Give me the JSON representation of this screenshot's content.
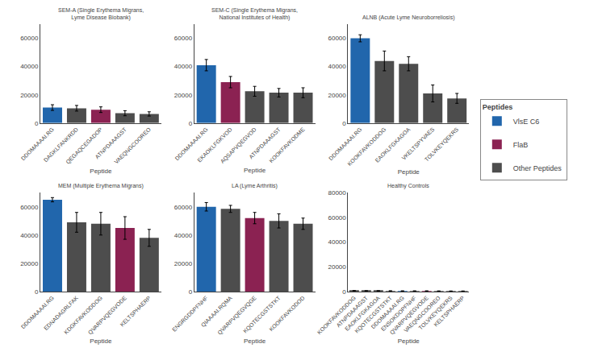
{
  "chart_data": [
    {
      "type": "bar",
      "title": "SEM-A (Single Erythema Migrans,\nLyme Disease Biobank)",
      "xlabel": "Peptide",
      "legend_title": "Peptides",
      "categories": [
        "DDOMAAAAI.RG",
        "DAGKLFANKRDD",
        "QEGAQCEGADOP",
        "ATNPDAAAGST",
        "VAEQNGCOOREO"
      ],
      "series": [
        {
          "name": "VlsE C6",
          "color": "#2166ac",
          "values": [
            11000,
            null,
            null,
            null,
            null
          ],
          "errors": [
            2000,
            null,
            null,
            null,
            null
          ]
        },
        {
          "name": "FlaB",
          "color": "#8b2252",
          "values": [
            null,
            null,
            9500,
            null,
            null
          ],
          "errors": [
            null,
            null,
            2000,
            null,
            null
          ]
        },
        {
          "name": "Other Peptides",
          "color": "#4d4d4d",
          "values": [
            null,
            10500,
            null,
            7000,
            6500
          ],
          "errors": [
            null,
            2000,
            null,
            1800,
            1500
          ]
        }
      ],
      "ylim": [
        0,
        70000
      ],
      "yticks": [
        0,
        20000,
        40000,
        60000
      ],
      "grid": false
    },
    {
      "type": "bar",
      "title": "SEM-C (Single Erythema Migrans,\nNational Institutes of Health)",
      "xlabel": "Peptide",
      "categories": [
        "DDOMAAAAI.RG",
        "EKAOKLFGKVOD",
        "AQSAPVQEGVOD",
        "ATNPDAAAGST",
        "KOOKFAVKODME"
      ],
      "series": [
        {
          "name": "VlsE C6",
          "color": "#2166ac",
          "values": [
            41000,
            null,
            null,
            null,
            null
          ],
          "errors": [
            4000,
            null,
            null,
            null,
            null
          ]
        },
        {
          "name": "FlaB",
          "color": "#8b2252",
          "values": [
            null,
            29000,
            null,
            null,
            null
          ],
          "errors": [
            null,
            4000,
            null,
            null,
            null
          ]
        },
        {
          "name": "Other Peptides",
          "color": "#4d4d4d",
          "values": [
            null,
            null,
            22500,
            21500,
            21500
          ],
          "errors": [
            null,
            null,
            3500,
            3000,
            3500
          ]
        }
      ],
      "ylim": [
        0,
        70000
      ],
      "yticks": [
        0,
        20000,
        40000,
        60000
      ],
      "grid": false
    },
    {
      "type": "bar",
      "title": "ALNB (Acute Lyme Neuroborreliosis)",
      "xlabel": "Peptide",
      "categories": [
        "DDOMAAAAI.RG",
        "KOOKFAVKODDOG",
        "EAOKLFGKAGOA",
        "VKELTSPYVAES",
        "TOLVKEYQEKRS"
      ],
      "series": [
        {
          "name": "VlsE C6",
          "color": "#2166ac",
          "values": [
            60000,
            null,
            null,
            null,
            null
          ],
          "errors": [
            2500,
            null,
            null,
            null,
            null
          ]
        },
        {
          "name": "Other Peptides",
          "color": "#4d4d4d",
          "values": [
            null,
            44000,
            42000,
            21000,
            17500
          ],
          "errors": [
            null,
            7000,
            5000,
            6000,
            3500
          ]
        }
      ],
      "ylim": [
        0,
        70000
      ],
      "yticks": [
        0,
        20000,
        40000,
        60000
      ],
      "grid": false
    },
    {
      "type": "bar",
      "title": "MEM (Multiple Erythema Migrans)",
      "xlabel": "Peptide",
      "categories": [
        "DDOMAAAAI.RG",
        "EDNADAGRLFAK",
        "KDGKFAVKODDOG",
        "QVARPVQEGVODE",
        "KELTSPHAERP"
      ],
      "series": [
        {
          "name": "VlsE C6",
          "color": "#2166ac",
          "values": [
            65000,
            null,
            null,
            null,
            null
          ],
          "errors": [
            1500,
            null,
            null,
            null,
            null
          ]
        },
        {
          "name": "FlaB",
          "color": "#8b2252",
          "values": [
            null,
            null,
            null,
            45000,
            null
          ],
          "errors": [
            null,
            null,
            null,
            8000,
            null
          ]
        },
        {
          "name": "Other Peptides",
          "color": "#4d4d4d",
          "values": [
            null,
            49000,
            48000,
            null,
            38000
          ],
          "errors": [
            null,
            7000,
            8000,
            null,
            6000
          ]
        }
      ],
      "ylim": [
        0,
        70000
      ],
      "yticks": [
        0,
        20000,
        40000,
        60000
      ],
      "grid": false
    },
    {
      "type": "bar",
      "title": "LA (Lyme Arthritis)",
      "xlabel": "Peptide",
      "categories": [
        "ENGRGDDPFNHF",
        "QIAAAAI.RQMA",
        "QVARPVQEGVQGE",
        "KQOTECGSTSTKT",
        "KOOKFAVKODOD"
      ],
      "series": [
        {
          "name": "VlsE C6",
          "color": "#2166ac",
          "values": [
            60000,
            null,
            null,
            null,
            null
          ],
          "errors": [
            3000,
            null,
            null,
            null,
            null
          ]
        },
        {
          "name": "FlaB",
          "color": "#8b2252",
          "values": [
            null,
            null,
            52000,
            null,
            null
          ],
          "errors": [
            null,
            null,
            4000,
            null,
            null
          ]
        },
        {
          "name": "Other Peptides",
          "color": "#4d4d4d",
          "values": [
            null,
            58500,
            null,
            50000,
            48000
          ],
          "errors": [
            null,
            2500,
            null,
            5000,
            4000
          ]
        }
      ],
      "ylim": [
        0,
        70000
      ],
      "yticks": [
        0,
        20000,
        40000,
        60000
      ],
      "grid": false
    },
    {
      "type": "bar",
      "title": "Healthy Controls",
      "xlabel": "Peptide",
      "categories": [
        "KOOKFAVKODDOG",
        "ATNPDAAAGST",
        "EAOKLFGKAGOA",
        "KQOTECGSTSTKT",
        "DDOMAAAAI.RG",
        "ENSOKDOPFNHF",
        "QVARPVQEGVODE",
        "VAEQNGCOOREO",
        "TOLVKEYQEKRS",
        "KELTSPHAERP"
      ],
      "series": [
        {
          "name": "VlsE C6",
          "color": "#2166ac",
          "values": [
            null,
            null,
            null,
            null,
            500,
            null,
            null,
            null,
            null,
            null
          ],
          "errors": [
            null,
            null,
            null,
            null,
            100,
            null,
            null,
            null,
            null,
            null
          ]
        },
        {
          "name": "FlaB",
          "color": "#8b2252",
          "values": [
            null,
            null,
            null,
            null,
            null,
            null,
            500,
            null,
            null,
            null
          ],
          "errors": [
            null,
            null,
            null,
            null,
            null,
            null,
            100,
            null,
            null,
            null
          ]
        },
        {
          "name": "Other Peptides",
          "color": "#4d4d4d",
          "values": [
            700,
            600,
            600,
            550,
            null,
            500,
            null,
            450,
            400,
            400
          ],
          "errors": [
            150,
            100,
            100,
            100,
            null,
            100,
            null,
            100,
            100,
            100
          ]
        }
      ],
      "ylim": [
        0,
        80000
      ],
      "yticks": [
        0,
        20000,
        40000,
        60000,
        80000
      ],
      "grid": false
    }
  ]
}
